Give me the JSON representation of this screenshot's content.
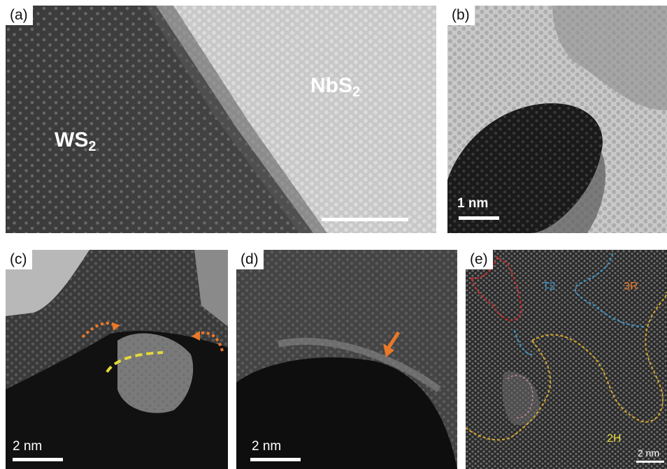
{
  "panels": {
    "a": {
      "label": "(a)",
      "material_left": {
        "base": "WS",
        "sub": "2"
      },
      "material_right": {
        "base": "NbS",
        "sub": "2"
      }
    },
    "b": {
      "label": "(b)",
      "scalebar": "1 nm"
    },
    "c": {
      "label": "(c)",
      "scalebar": "2 nm"
    },
    "d": {
      "label": "(d)",
      "scalebar": "2 nm"
    },
    "e": {
      "label": "(e)",
      "scalebar": "2 nm",
      "region_t2": "T2",
      "region_3r": "3R",
      "region_2h": "2H"
    }
  },
  "colors": {
    "orange": "#e8782a",
    "yellow": "#e5d83a",
    "blue": "#3a9ad0",
    "red": "#d22a2a",
    "pink": "#c98aa8",
    "gold": "#d9a92a"
  }
}
